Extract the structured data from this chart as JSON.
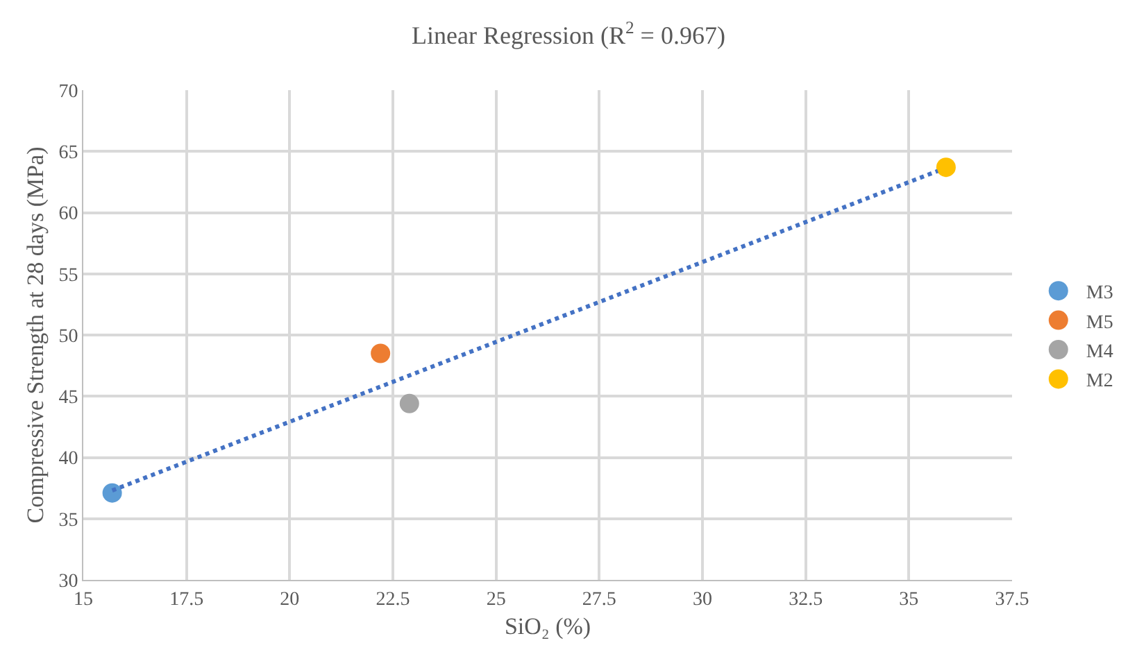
{
  "chart_data": {
    "type": "scatter",
    "title": "Linear Regression (R$^{2}$ = 0.967)",
    "xlabel": "SiO₂ (%)",
    "ylabel": "Compressive Strength at 28 days (MPa)",
    "xlim": [
      15,
      37.5
    ],
    "xticks": [
      15,
      17.5,
      20,
      22.5,
      25,
      27.5,
      30,
      32.5,
      35,
      37.5
    ],
    "ylim": [
      30,
      70
    ],
    "yticks": [
      30,
      35,
      40,
      45,
      50,
      55,
      60,
      65,
      70
    ],
    "grid": true,
    "legend": "right",
    "marker": "circle",
    "series": [
      {
        "name": "M3",
        "color": "#5b9bd5",
        "x": [
          15.7
        ],
        "values": [
          37.1
        ]
      },
      {
        "name": "M5",
        "color": "#ed7d31",
        "x": [
          22.2
        ],
        "values": [
          48.5
        ]
      },
      {
        "name": "M4",
        "color": "#a5a5a5",
        "x": [
          22.9
        ],
        "values": [
          44.4
        ]
      },
      {
        "name": "M2",
        "color": "#ffc000",
        "x": [
          35.9
        ],
        "values": [
          63.7
        ]
      },
      {
        "type": "line",
        "color": "#4472c4",
        "line_style": "dotted",
        "marker": "none",
        "x": [
          15.7,
          35.7
        ],
        "values": [
          37.3,
          63.4
        ]
      }
    ]
  }
}
